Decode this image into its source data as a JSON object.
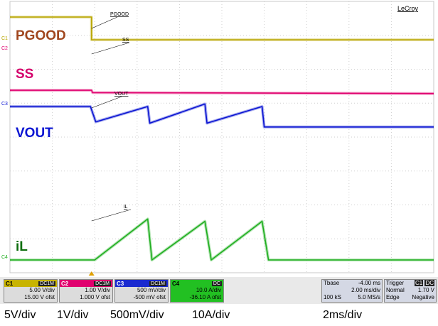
{
  "brand": "LeCroy",
  "traces": [
    {
      "id": "C1",
      "name": "PGOOD",
      "color": "#b9a600",
      "label_color": "#a0461e",
      "probe_label": "PGOOD"
    },
    {
      "id": "C2",
      "name": "SS",
      "color": "#e0006e",
      "label_color": "#d4006a",
      "probe_label": "SS"
    },
    {
      "id": "C3",
      "name": "VOUT",
      "color": "#0a14d2",
      "label_color": "#0a14d2",
      "probe_label": "VOUT"
    },
    {
      "id": "C4",
      "name": "iL",
      "color": "#1fae1f",
      "label_color": "#0e6e0e",
      "probe_label": "iL"
    }
  ],
  "channels": [
    {
      "id": "C1",
      "coupling": "DC1M",
      "scale": "5.00 V/div",
      "offset": "15.00 V ofst",
      "color": "#c8b400"
    },
    {
      "id": "C2",
      "coupling": "DC1M",
      "scale": "1.00 V/div",
      "offset": "1.000 V ofst",
      "color": "#e0006e"
    },
    {
      "id": "C3",
      "coupling": "DC1M",
      "scale": "500 mV/div",
      "offset": "-500 mV ofst",
      "color": "#1a2ad0"
    },
    {
      "id": "C4",
      "coupling": "DC",
      "scale": "10.0 A/div",
      "offset": "-36.10 A ofst",
      "color": "#22c022"
    }
  ],
  "timebase": {
    "tbase_label": "Tbase",
    "tbase_value": "-4.00 ms",
    "time_div": "2.00 ms/div",
    "samples": "100 kS",
    "rate": "5.0 MS/s"
  },
  "trigger": {
    "label": "Trigger",
    "channel": "C1",
    "coupling": "DC",
    "mode": "Normal",
    "level": "1.70 V",
    "type": "Edge",
    "slope": "Negative"
  },
  "scale_labels": {
    "c1": "5V/div",
    "c2": "1V/div",
    "c3": "500mV/div",
    "c4": "10A/div",
    "time": "2ms/div"
  },
  "chart_data": {
    "type": "line",
    "title": "",
    "xlabel": "",
    "ylabel": "",
    "x_unit": "ms",
    "xlim": [
      -4,
      16
    ],
    "divisions": {
      "x": 10,
      "y": 8
    },
    "grid": true,
    "series": [
      {
        "name": "PGOOD",
        "unit": "V",
        "points": [
          [
            -4,
            3.3
          ],
          [
            -0.15,
            3.3
          ],
          [
            -0.15,
            0
          ],
          [
            16,
            0
          ]
        ]
      },
      {
        "name": "SS",
        "unit": "V",
        "points": [
          [
            -4,
            0.85
          ],
          [
            -0.15,
            0.85
          ],
          [
            -0.1,
            0.8
          ],
          [
            16,
            0.78
          ]
        ]
      },
      {
        "name": "VOUT",
        "unit": "V",
        "points": [
          [
            -4,
            1.2
          ],
          [
            -0.2,
            1.2
          ],
          [
            0.05,
            1.08
          ],
          [
            2.5,
            1.2
          ],
          [
            2.6,
            1.07
          ],
          [
            5.2,
            1.22
          ],
          [
            5.3,
            1.07
          ],
          [
            7.9,
            1.2
          ],
          [
            8.0,
            1.04
          ],
          [
            16,
            1.04
          ]
        ]
      },
      {
        "name": "iL",
        "unit": "A",
        "points": [
          [
            -4,
            0
          ],
          [
            -0.15,
            0
          ],
          [
            0,
            0
          ],
          [
            2.5,
            18
          ],
          [
            2.7,
            0
          ],
          [
            5.2,
            17
          ],
          [
            5.5,
            0
          ],
          [
            7.9,
            17
          ],
          [
            8.2,
            0
          ],
          [
            16,
            0
          ]
        ]
      }
    ]
  }
}
